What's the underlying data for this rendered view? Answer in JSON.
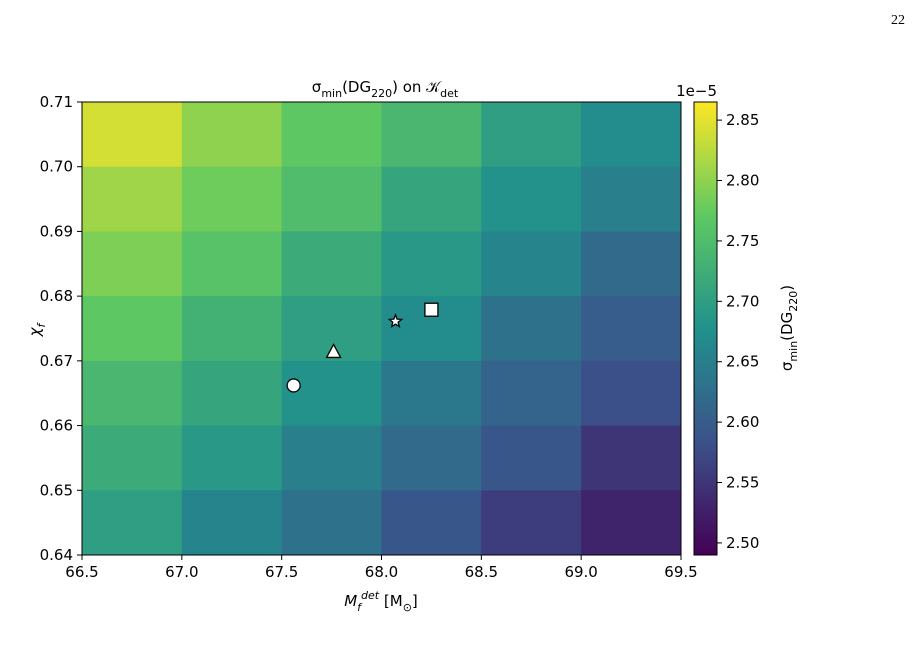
{
  "page_number": "22",
  "chart_data": {
    "type": "heatmap",
    "title": [
      {
        "t": "σ"
      },
      {
        "t": "min",
        "pos": "sub"
      },
      {
        "t": "(DG"
      },
      {
        "t": "220",
        "pos": "sub"
      },
      {
        "t": ") on 𝒦"
      },
      {
        "t": "det",
        "pos": "sub"
      }
    ],
    "xlabel": [
      {
        "t": "M"
      },
      {
        "t": "f",
        "pos": "sub"
      },
      {
        "t": "det",
        "pos": "sup"
      },
      {
        "t": " [M"
      },
      {
        "t": "⊙",
        "pos": "sub"
      },
      {
        "t": "]"
      }
    ],
    "ylabel": [
      {
        "t": "χ"
      },
      {
        "t": "f",
        "pos": "sub"
      }
    ],
    "x": [
      66.75,
      67.25,
      67.75,
      68.25,
      68.75,
      69.25
    ],
    "y": [
      0.705,
      0.695,
      0.685,
      0.675,
      0.665,
      0.655,
      0.645
    ],
    "z": [
      [
        2.84,
        2.8,
        2.77,
        2.74,
        2.7,
        2.67
      ],
      [
        2.81,
        2.78,
        2.75,
        2.71,
        2.68,
        2.65
      ],
      [
        2.79,
        2.76,
        2.72,
        2.69,
        2.66,
        2.62
      ],
      [
        2.77,
        2.73,
        2.7,
        2.67,
        2.63,
        2.6
      ],
      [
        2.74,
        2.71,
        2.68,
        2.64,
        2.61,
        2.58
      ],
      [
        2.72,
        2.69,
        2.65,
        2.62,
        2.59,
        2.55
      ],
      [
        2.7,
        2.66,
        2.63,
        2.59,
        2.56,
        2.53
      ]
    ],
    "xlim": [
      66.5,
      69.5
    ],
    "ylim": [
      0.64,
      0.71
    ],
    "xticks": [
      {
        "value": 66.5,
        "label": "66.5"
      },
      {
        "value": 67,
        "label": "67.0"
      },
      {
        "value": 67.5,
        "label": "67.5"
      },
      {
        "value": 68,
        "label": "68.0"
      },
      {
        "value": 68.5,
        "label": "68.5"
      },
      {
        "value": 69,
        "label": "69.0"
      },
      {
        "value": 69.5,
        "label": "69.5"
      }
    ],
    "yticks": [
      {
        "value": 0.64,
        "label": "0.64"
      },
      {
        "value": 0.65,
        "label": "0.65"
      },
      {
        "value": 0.66,
        "label": "0.66"
      },
      {
        "value": 0.67,
        "label": "0.67"
      },
      {
        "value": 0.68,
        "label": "0.68"
      },
      {
        "value": 0.69,
        "label": "0.69"
      },
      {
        "value": 0.7,
        "label": "0.70"
      },
      {
        "value": 0.71,
        "label": "0.71"
      }
    ],
    "colormap": "viridis",
    "clim": [
      2.49,
      2.865
    ],
    "cticks": [
      {
        "value": 2.5,
        "label": "2.50"
      },
      {
        "value": 2.55,
        "label": "2.55"
      },
      {
        "value": 2.6,
        "label": "2.60"
      },
      {
        "value": 2.65,
        "label": "2.65"
      },
      {
        "value": 2.7,
        "label": "2.70"
      },
      {
        "value": 2.75,
        "label": "2.75"
      },
      {
        "value": 2.8,
        "label": "2.80"
      },
      {
        "value": 2.85,
        "label": "2.85"
      }
    ],
    "coffset": "1e−5",
    "clabel": [
      {
        "t": "σ"
      },
      {
        "t": "min",
        "pos": "sub"
      },
      {
        "t": "(DG"
      },
      {
        "t": "220",
        "pos": "sub"
      },
      {
        "t": ")"
      }
    ],
    "markers": [
      {
        "marker": "circle",
        "x": 67.56,
        "y": 0.6662
      },
      {
        "marker": "triangle",
        "x": 67.76,
        "y": 0.6713
      },
      {
        "marker": "star",
        "x": 68.07,
        "y": 0.6761
      },
      {
        "marker": "square",
        "x": 68.25,
        "y": 0.6779
      }
    ]
  }
}
